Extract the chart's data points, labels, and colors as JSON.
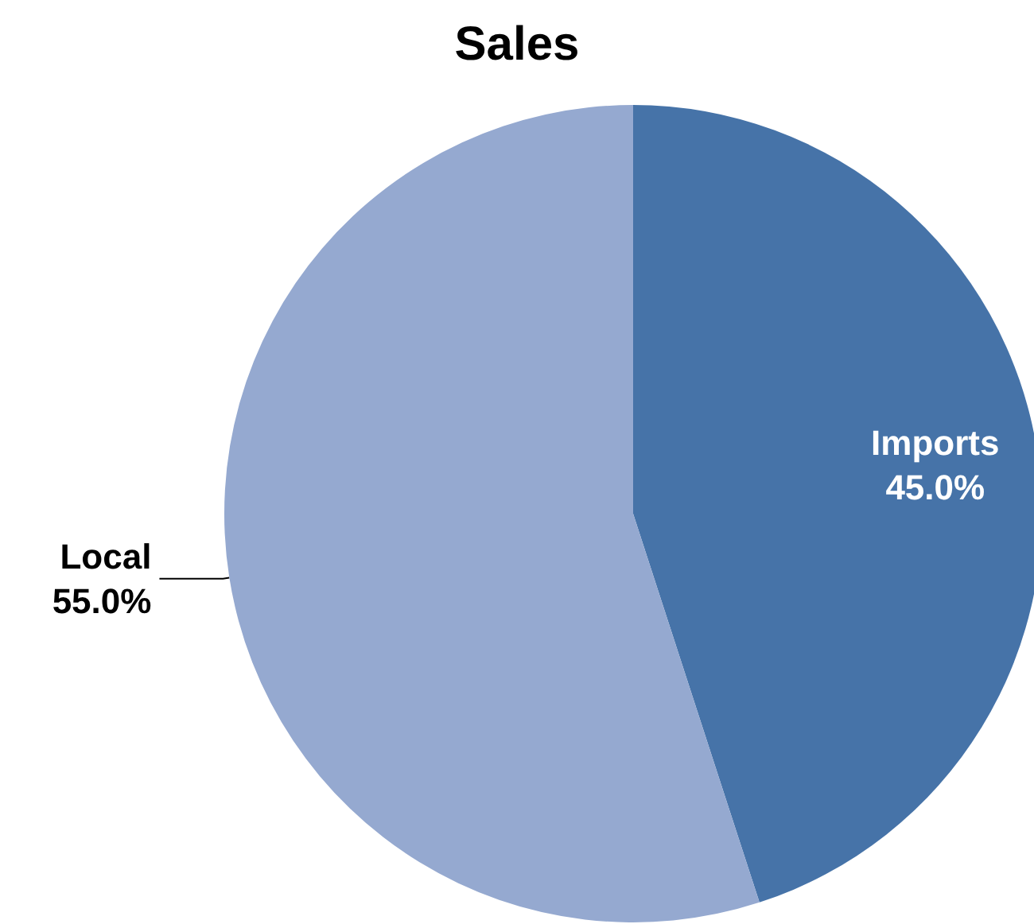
{
  "chart_data": {
    "type": "pie",
    "title": "Sales",
    "categories": [
      "Imports",
      "Local"
    ],
    "values": [
      45,
      55
    ],
    "colors": [
      "#4673a8",
      "#95a9d0"
    ],
    "value_labels": [
      "45.0%",
      "55.0%"
    ],
    "legend": false
  }
}
